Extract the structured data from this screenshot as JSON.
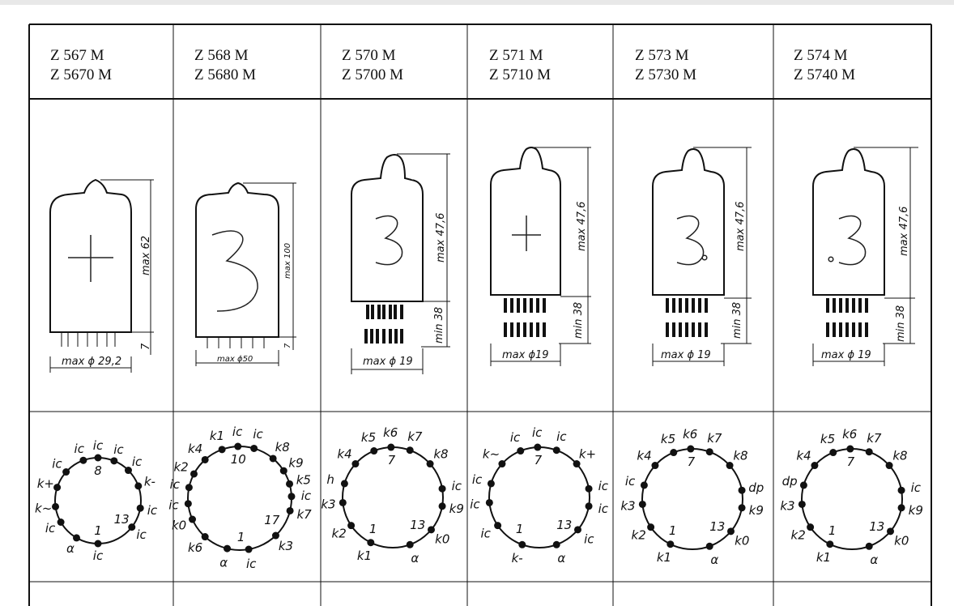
{
  "columns": [
    {
      "header": [
        "Z 567   M",
        "Z 5670 M"
      ],
      "symbol": "+",
      "dimensions": {
        "height": "max 62",
        "base": "7",
        "diameter": "max ϕ 29,2"
      },
      "pins": [
        {
          "text": "ic",
          "a": 180
        },
        {
          "text": "1",
          "a": 180,
          "inner": true
        },
        {
          "text": "α",
          "a": 210
        },
        {
          "text": "ic",
          "a": 240
        },
        {
          "text": "k~",
          "a": 262
        },
        {
          "text": "k+",
          "a": 288
        },
        {
          "text": "ic",
          "a": 312
        },
        {
          "text": "ic",
          "a": 340
        },
        {
          "text": "ic",
          "a": 360
        },
        {
          "text": "8",
          "a": 360,
          "inner": true
        },
        {
          "text": "ic",
          "a": 22
        },
        {
          "text": "ic",
          "a": 45
        },
        {
          "text": "k-",
          "a": 70
        },
        {
          "text": "ic",
          "a": 100
        },
        {
          "text": "ic",
          "a": 128
        },
        {
          "text": "13",
          "a": 128,
          "inner": true
        }
      ]
    },
    {
      "header": [
        "Z 568   M",
        "Z 5680 M"
      ],
      "symbol": "3",
      "dimensions": {
        "height": "max 100",
        "base": "7",
        "diameter": "max ϕ50"
      },
      "pins": [
        {
          "text": "k1",
          "a": 340
        },
        {
          "text": "ic",
          "a": 358
        },
        {
          "text": "ic",
          "a": 16
        },
        {
          "text": "10",
          "a": 358,
          "inner": true
        },
        {
          "text": "k8",
          "a": 40
        },
        {
          "text": "k9",
          "a": 58
        },
        {
          "text": "k5",
          "a": 74
        },
        {
          "text": "ic",
          "a": 88
        },
        {
          "text": "k7",
          "a": 104
        },
        {
          "text": "17",
          "a": 124,
          "inner": true
        },
        {
          "text": "k3",
          "a": 136
        },
        {
          "text": "ic",
          "a": 170
        },
        {
          "text": "1",
          "a": 178,
          "inner": true
        },
        {
          "text": "α",
          "a": 194
        },
        {
          "text": "k6",
          "a": 222
        },
        {
          "text": "k0",
          "a": 246
        },
        {
          "text": "ic",
          "a": 264
        },
        {
          "text": "ic",
          "a": 282
        },
        {
          "text": "k2",
          "a": 298
        },
        {
          "text": "k4",
          "a": 318
        }
      ]
    },
    {
      "header": [
        "Z 570   M",
        "Z 5700 M"
      ],
      "symbol": "3",
      "dimensions": {
        "height": "max 47,6",
        "base": "min 38",
        "diameter": "max ϕ 19"
      },
      "pins": [
        {
          "text": "k5",
          "a": 338
        },
        {
          "text": "k6",
          "a": 358
        },
        {
          "text": "7",
          "a": 358,
          "inner": true
        },
        {
          "text": "k7",
          "a": 20
        },
        {
          "text": "k8",
          "a": 48
        },
        {
          "text": "ic",
          "a": 80
        },
        {
          "text": "k9",
          "a": 100
        },
        {
          "text": "k0",
          "a": 130
        },
        {
          "text": "13",
          "a": 138,
          "inner": true
        },
        {
          "text": "α",
          "a": 160
        },
        {
          "text": "k1",
          "a": 206
        },
        {
          "text": "1",
          "a": 212,
          "inner": true
        },
        {
          "text": "k2",
          "a": 236
        },
        {
          "text": "k3",
          "a": 264
        },
        {
          "text": "h",
          "a": 286
        },
        {
          "text": "k4",
          "a": 312
        }
      ]
    },
    {
      "header": [
        "Z 571   M",
        "Z 5710 M"
      ],
      "symbol": "+",
      "dimensions": {
        "height": "max 47,6",
        "base": "min 38",
        "diameter": "max ϕ19"
      },
      "pins": [
        {
          "text": "ic",
          "a": 338
        },
        {
          "text": "ic",
          "a": 358
        },
        {
          "text": "7",
          "a": 358,
          "inner": true
        },
        {
          "text": "ic",
          "a": 20
        },
        {
          "text": "k+",
          "a": 48
        },
        {
          "text": "ic",
          "a": 80
        },
        {
          "text": "ic",
          "a": 100
        },
        {
          "text": "ic",
          "a": 130
        },
        {
          "text": "13",
          "a": 138,
          "inner": true
        },
        {
          "text": "α",
          "a": 160
        },
        {
          "text": "k-",
          "a": 200
        },
        {
          "text": "1",
          "a": 212,
          "inner": true
        },
        {
          "text": "ic",
          "a": 236
        },
        {
          "text": "ic",
          "a": 264
        },
        {
          "text": "ic",
          "a": 286
        },
        {
          "text": "k~",
          "a": 312
        }
      ]
    },
    {
      "header": [
        "Z 573   M",
        "Z 5730 M"
      ],
      "symbol": "3.",
      "dimensions": {
        "height": "max 47,6",
        "base": "min 38",
        "diameter": "max ϕ 19"
      },
      "pins": [
        {
          "text": "k5",
          "a": 338
        },
        {
          "text": "k6",
          "a": 358
        },
        {
          "text": "7",
          "a": 358,
          "inner": true
        },
        {
          "text": "k7",
          "a": 20
        },
        {
          "text": "k8",
          "a": 48
        },
        {
          "text": "dp",
          "a": 80
        },
        {
          "text": "k9",
          "a": 100
        },
        {
          "text": "k0",
          "a": 130
        },
        {
          "text": "13",
          "a": 138,
          "inner": true
        },
        {
          "text": "α",
          "a": 160
        },
        {
          "text": "k1",
          "a": 206
        },
        {
          "text": "1",
          "a": 212,
          "inner": true
        },
        {
          "text": "k2",
          "a": 236
        },
        {
          "text": "k3",
          "a": 264
        },
        {
          "text": "ic",
          "a": 286
        },
        {
          "text": "k4",
          "a": 312
        }
      ]
    },
    {
      "header": [
        "Z 574   M",
        "Z 5740 M"
      ],
      "symbol": ".3",
      "dimensions": {
        "height": "max 47,6",
        "base": "min 38",
        "diameter": "max ϕ 19"
      },
      "pins": [
        {
          "text": "k5",
          "a": 338
        },
        {
          "text": "k6",
          "a": 358
        },
        {
          "text": "7",
          "a": 358,
          "inner": true
        },
        {
          "text": "k7",
          "a": 20
        },
        {
          "text": "k8",
          "a": 48
        },
        {
          "text": "ic",
          "a": 80
        },
        {
          "text": "k9",
          "a": 100
        },
        {
          "text": "k0",
          "a": 130
        },
        {
          "text": "13",
          "a": 138,
          "inner": true
        },
        {
          "text": "α",
          "a": 160
        },
        {
          "text": "k1",
          "a": 206
        },
        {
          "text": "1",
          "a": 212,
          "inner": true
        },
        {
          "text": "k2",
          "a": 236
        },
        {
          "text": "k3",
          "a": 264
        },
        {
          "text": "dp",
          "a": 286
        },
        {
          "text": "k4",
          "a": 312
        }
      ]
    }
  ]
}
